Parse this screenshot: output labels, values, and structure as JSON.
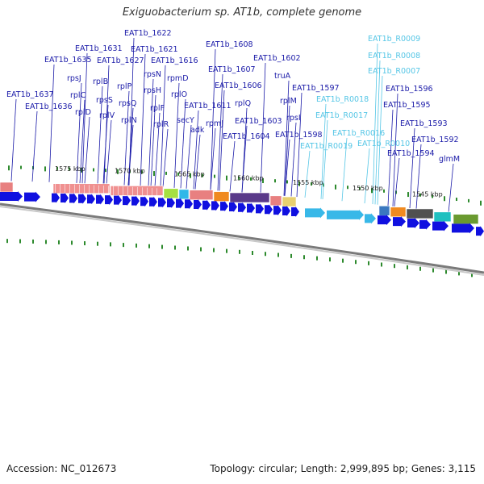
{
  "title": "Exiguobacterium sp. AT1b, complete genome",
  "accession": "Accession: NC_012673",
  "summary": "Topology: circular; Length: 2,999,895 bp; Genes: 3,115",
  "colors": {
    "gene_label": "#1a1aa8",
    "rna_label": "#55c6e6",
    "cds_arrow": "#1010e0",
    "rna_arrow": "#38b8e8",
    "backbone": "#808080",
    "tick": "#2d8a2d"
  },
  "kbp_markers": [
    "1575 kbp",
    "1570 kbp",
    "1565 kbp",
    "1560 kbp",
    "1555 kbp",
    "1550 kbp",
    "1545 kbp"
  ],
  "gene_labels": [
    {
      "text": "EAT1b_1622",
      "kind": "gene"
    },
    {
      "text": "EAT1b_1631",
      "kind": "gene"
    },
    {
      "text": "EAT1b_1621",
      "kind": "gene"
    },
    {
      "text": "EAT1b_1635",
      "kind": "gene"
    },
    {
      "text": "EAT1b_1627",
      "kind": "gene"
    },
    {
      "text": "EAT1b_1616",
      "kind": "gene"
    },
    {
      "text": "EAT1b_1608",
      "kind": "gene"
    },
    {
      "text": "EAT1b_1602",
      "kind": "gene"
    },
    {
      "text": "EAT1b_1607",
      "kind": "gene"
    },
    {
      "text": "rpsN",
      "kind": "gene"
    },
    {
      "text": "rpmD",
      "kind": "gene"
    },
    {
      "text": "rpsJ",
      "kind": "gene"
    },
    {
      "text": "rplB",
      "kind": "gene"
    },
    {
      "text": "rplP",
      "kind": "gene"
    },
    {
      "text": "truA",
      "kind": "gene"
    },
    {
      "text": "EAT1b_1606",
      "kind": "gene"
    },
    {
      "text": "rpsH",
      "kind": "gene"
    },
    {
      "text": "rplO",
      "kind": "gene"
    },
    {
      "text": "EAT1b_1597",
      "kind": "gene"
    },
    {
      "text": "EAT1b_1596",
      "kind": "gene"
    },
    {
      "text": "rplC",
      "kind": "gene"
    },
    {
      "text": "EAT1b_1637",
      "kind": "gene"
    },
    {
      "text": "rpsS",
      "kind": "gene"
    },
    {
      "text": "rpsQ",
      "kind": "gene"
    },
    {
      "text": "rplM",
      "kind": "gene"
    },
    {
      "text": "EAT1b_1636",
      "kind": "gene"
    },
    {
      "text": "rplD",
      "kind": "gene"
    },
    {
      "text": "rplF",
      "kind": "gene"
    },
    {
      "text": "rplQ",
      "kind": "gene"
    },
    {
      "text": "EAT1b_1611",
      "kind": "gene"
    },
    {
      "text": "EAT1b_1595",
      "kind": "gene"
    },
    {
      "text": "rplV",
      "kind": "gene"
    },
    {
      "text": "secY",
      "kind": "gene"
    },
    {
      "text": "rpsI",
      "kind": "gene"
    },
    {
      "text": "rplN",
      "kind": "gene"
    },
    {
      "text": "rplR",
      "kind": "gene"
    },
    {
      "text": "rpmJ",
      "kind": "gene"
    },
    {
      "text": "EAT1b_1603",
      "kind": "gene"
    },
    {
      "text": "EAT1b_1593",
      "kind": "gene"
    },
    {
      "text": "adk",
      "kind": "gene"
    },
    {
      "text": "EAT1b_1604",
      "kind": "gene"
    },
    {
      "text": "EAT1b_1598",
      "kind": "gene"
    },
    {
      "text": "EAT1b_1592",
      "kind": "gene"
    },
    {
      "text": "EAT1b_1594",
      "kind": "gene"
    },
    {
      "text": "glmM",
      "kind": "gene"
    },
    {
      "text": "EAT1b_R0009",
      "kind": "rna"
    },
    {
      "text": "EAT1b_R0008",
      "kind": "rna"
    },
    {
      "text": "EAT1b_R0007",
      "kind": "rna"
    },
    {
      "text": "EAT1b_R0018",
      "kind": "rna"
    },
    {
      "text": "EAT1b_R0017",
      "kind": "rna"
    },
    {
      "text": "EAT1b_R0016",
      "kind": "rna"
    },
    {
      "text": "EAT1b_R0019",
      "kind": "rna"
    },
    {
      "text": "EAT1b_R0010",
      "kind": "rna"
    }
  ]
}
